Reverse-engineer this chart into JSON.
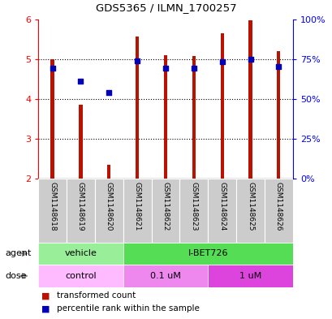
{
  "title": "GDS5365 / ILMN_1700257",
  "samples": [
    "GSM1148618",
    "GSM1148619",
    "GSM1148620",
    "GSM1148621",
    "GSM1148622",
    "GSM1148623",
    "GSM1148624",
    "GSM1148625",
    "GSM1148626"
  ],
  "transformed_counts": [
    5.0,
    3.85,
    2.35,
    5.57,
    5.1,
    5.08,
    5.65,
    5.97,
    5.2
  ],
  "percentile_ranks": [
    4.78,
    4.45,
    4.15,
    4.95,
    4.78,
    4.78,
    4.93,
    5.0,
    4.82
  ],
  "bar_bottom": 2.0,
  "ylim_left": [
    2,
    6
  ],
  "ylim_right": [
    0,
    100
  ],
  "right_ticks": [
    0,
    25,
    50,
    75,
    100
  ],
  "right_tick_labels": [
    "0%",
    "25%",
    "50%",
    "75%",
    "100%"
  ],
  "left_ticks": [
    2,
    3,
    4,
    5,
    6
  ],
  "bar_color": "#bb1100",
  "dot_color": "#0000bb",
  "agent_groups": [
    {
      "label": "vehicle",
      "start": 0,
      "end": 3,
      "color": "#99ee99"
    },
    {
      "label": "I-BET726",
      "start": 3,
      "end": 9,
      "color": "#55dd55"
    }
  ],
  "dose_groups": [
    {
      "label": "control",
      "start": 0,
      "end": 3,
      "color": "#ffbbff"
    },
    {
      "label": "0.1 uM",
      "start": 3,
      "end": 6,
      "color": "#ee88ee"
    },
    {
      "label": "1 uM",
      "start": 6,
      "end": 9,
      "color": "#dd44dd"
    }
  ],
  "background_color": "#ffffff",
  "sample_bg_color": "#cccccc",
  "bar_width": 0.12
}
